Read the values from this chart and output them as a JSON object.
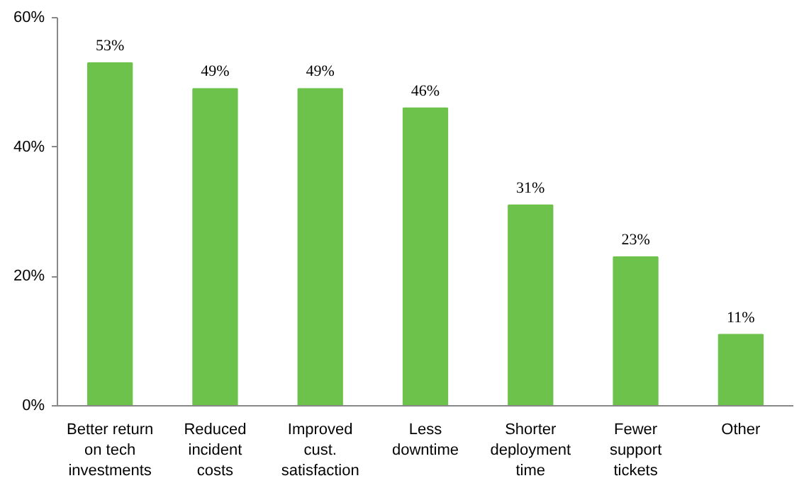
{
  "chart_data": {
    "type": "bar",
    "categories": [
      "Better return\non tech\ninvestments",
      "Reduced\nincident\ncosts",
      "Improved\ncust.\nsatisfaction",
      "Less\ndowntime",
      "Shorter\ndeployment\ntime",
      "Fewer\nsupport\ntickets",
      "Other"
    ],
    "values": [
      53,
      49,
      49,
      46,
      31,
      23,
      11
    ],
    "value_labels": [
      "53%",
      "49%",
      "49%",
      "46%",
      "31%",
      "23%",
      "11%"
    ],
    "color": "#6cc24a",
    "ylim": [
      0,
      60
    ],
    "yticks": [
      {
        "value": 0,
        "label": "0%"
      },
      {
        "value": 20,
        "label": "20%"
      },
      {
        "value": 40,
        "label": "40%"
      },
      {
        "value": 60,
        "label": "60%"
      }
    ],
    "grid": false
  }
}
